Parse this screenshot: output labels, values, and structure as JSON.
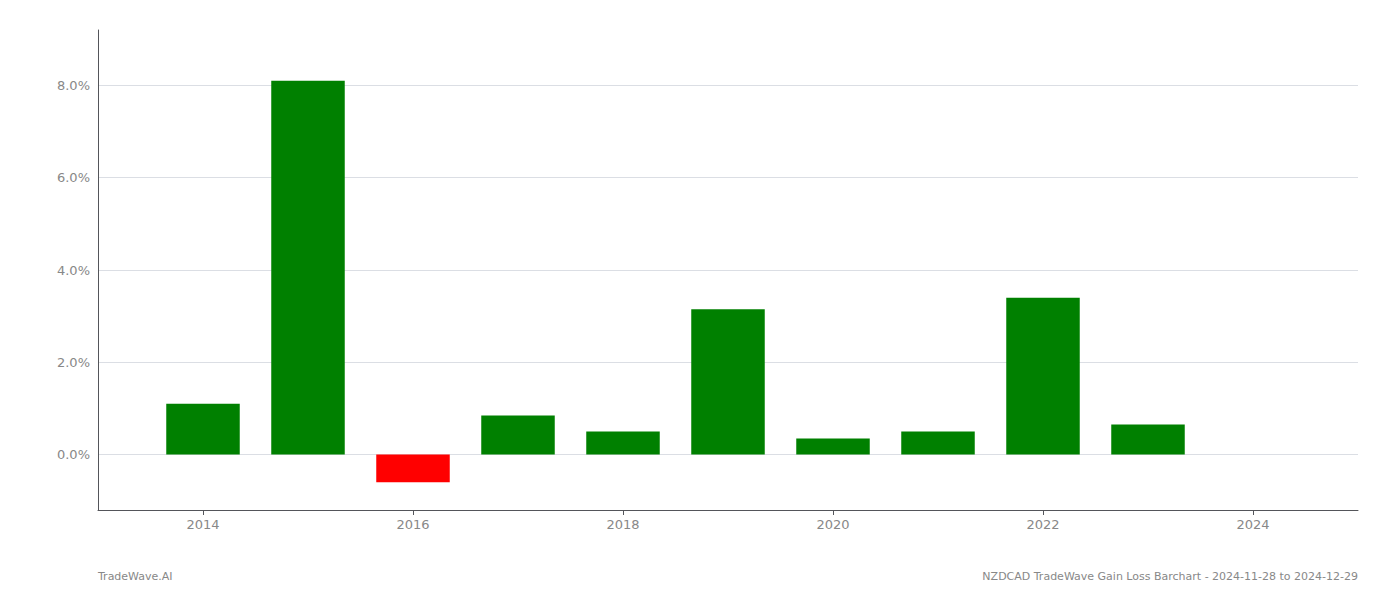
{
  "chart_data": {
    "type": "bar",
    "x": [
      2014,
      2015,
      2016,
      2017,
      2018,
      2019,
      2020,
      2021,
      2022,
      2023
    ],
    "values": [
      0.011,
      0.081,
      -0.006,
      0.0085,
      0.005,
      0.0315,
      0.0035,
      0.005,
      0.034,
      0.0065
    ],
    "colors": [
      "#008000",
      "#008000",
      "#ff0000",
      "#008000",
      "#008000",
      "#008000",
      "#008000",
      "#008000",
      "#008000",
      "#008000"
    ],
    "xlim": [
      2013.0,
      2025.0
    ],
    "xticks": [
      2014,
      2016,
      2018,
      2020,
      2022,
      2024
    ],
    "ylim": [
      -0.012,
      0.092
    ],
    "yticks": [
      {
        "value": 0.0,
        "label": "0.0%"
      },
      {
        "value": 0.02,
        "label": "2.0%"
      },
      {
        "value": 0.04,
        "label": "4.0%"
      },
      {
        "value": 0.06,
        "label": "6.0%"
      },
      {
        "value": 0.08,
        "label": "8.0%"
      }
    ],
    "grid": true,
    "annotations": [
      "TradeWave.AI",
      "NZDCAD TradeWave Gain Loss Barchart - 2024-11-28 to 2024-12-29"
    ]
  }
}
